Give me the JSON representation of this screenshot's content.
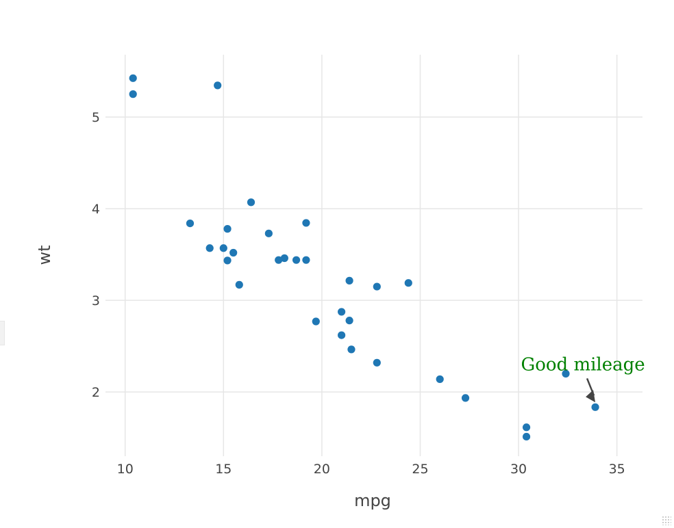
{
  "chart_data": {
    "type": "scatter",
    "title": "",
    "xlabel": "mpg",
    "ylabel": "wt",
    "xlim": [
      9.0,
      36.3
    ],
    "ylim": [
      1.3,
      5.68
    ],
    "x_ticks": [
      10,
      15,
      20,
      25,
      30,
      35
    ],
    "y_ticks": [
      2,
      3,
      4,
      5
    ],
    "grid": true,
    "legend": "none",
    "marker_color": "#1f77b4",
    "series": [
      {
        "x": [
          21,
          21,
          22.8,
          21.4,
          18.7,
          18.1,
          14.3,
          24.4,
          22.8,
          19.2,
          17.8,
          16.4,
          17.3,
          15.2,
          10.4,
          10.4,
          14.7,
          32.4,
          30.4,
          33.9,
          21.5,
          15.5,
          15.2,
          13.3,
          19.2,
          27.3,
          26,
          30.4,
          15.8,
          19.7,
          15,
          21.4
        ],
        "y": [
          2.62,
          2.875,
          2.32,
          3.215,
          3.44,
          3.46,
          3.57,
          3.19,
          3.15,
          3.44,
          3.44,
          4.07,
          3.73,
          3.78,
          5.25,
          5.424,
          5.345,
          2.2,
          1.615,
          1.835,
          2.465,
          3.52,
          3.435,
          3.84,
          3.845,
          1.935,
          2.14,
          1.513,
          3.17,
          2.77,
          3.57,
          2.78
        ]
      }
    ],
    "annotations": [
      {
        "text": "Good mileage",
        "x": 33.9,
        "y": 1.835,
        "color": "#008000",
        "arrow_color": "#444444"
      }
    ]
  }
}
